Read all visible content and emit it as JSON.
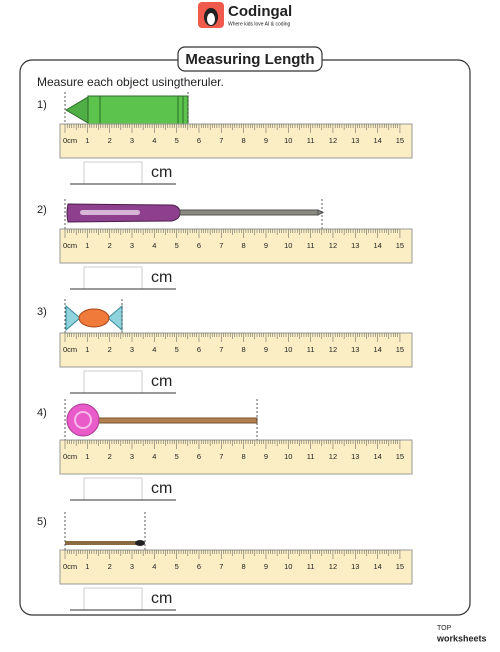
{
  "header": {
    "brand": "Codingal",
    "tagline": "Where kids love AI & coding"
  },
  "title": "Measuring Length",
  "instruction": "Measure each object usingtheruler.",
  "ruler": {
    "labels": [
      "0cm",
      "1",
      "2",
      "3",
      "4",
      "5",
      "6",
      "7",
      "8",
      "9",
      "10",
      "11",
      "12",
      "13",
      "14",
      "15"
    ]
  },
  "questions": [
    {
      "number": "1)",
      "unit": "cm"
    },
    {
      "number": "2)",
      "unit": "cm"
    },
    {
      "number": "3)",
      "unit": "cm"
    },
    {
      "number": "4)",
      "unit": "cm"
    },
    {
      "number": "5)",
      "unit": "cm"
    }
  ],
  "footer": {
    "top": "TOP",
    "brand": "worksheets"
  }
}
